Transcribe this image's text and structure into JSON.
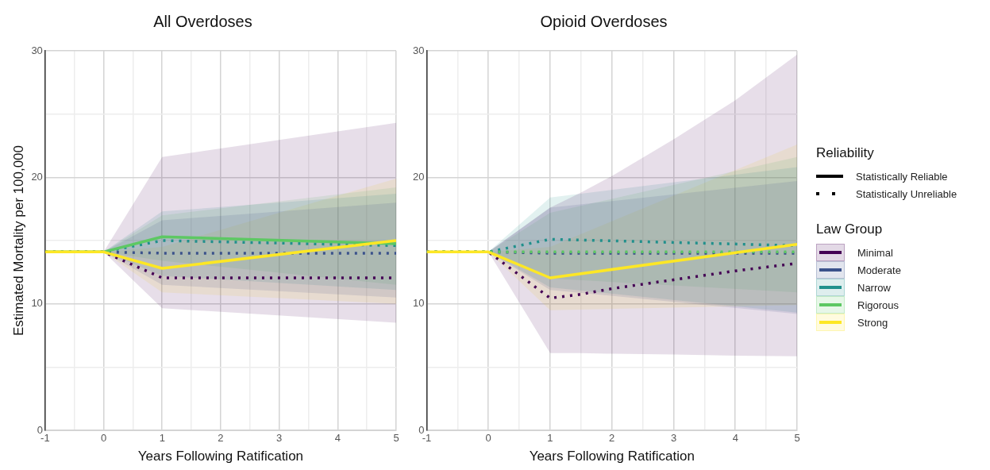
{
  "chart_data": [
    {
      "type": "line",
      "title": "All Overdoses",
      "xlabel": "Years Following Ratification",
      "ylabel": "Estimated Mortality per 100,000",
      "xlim": [
        -1,
        5
      ],
      "ylim": [
        0,
        30
      ],
      "xticks": [
        -1,
        {
          "value": -0.5,
          "label": null
        },
        0,
        {
          "value": 0.5,
          "label": null
        },
        1,
        {
          "value": 1.5,
          "label": null
        },
        2,
        {
          "value": 2.5,
          "label": null
        },
        3,
        {
          "value": 3.5,
          "label": null
        },
        4,
        {
          "value": 4.5,
          "label": null
        },
        5
      ],
      "yticks": [
        0,
        {
          "value": 5,
          "label": null
        },
        10,
        {
          "value": 15,
          "label": null
        },
        20,
        {
          "value": 25,
          "label": null
        },
        30
      ],
      "grid": true,
      "legend": false,
      "series": [
        {
          "color": "#440154",
          "line_style": "dotted",
          "x": [
            -1,
            0,
            1,
            5
          ],
          "values": [
            14.1,
            14.1,
            12.05,
            12.05
          ],
          "lower": [
            14.1,
            14.1,
            9.65,
            8.5
          ],
          "upper": [
            14.1,
            14.1,
            21.6,
            24.3
          ]
        },
        {
          "color": "#3b528b",
          "line_style": "dotted",
          "x": [
            -1,
            0,
            1,
            5
          ],
          "values": [
            14.1,
            14.1,
            14.0,
            14.0
          ],
          "lower": [
            14.1,
            14.1,
            11.5,
            10.5
          ],
          "upper": [
            14.1,
            14.1,
            16.6,
            18.0
          ]
        },
        {
          "color": "#21908c",
          "line_style": "dotted",
          "x": [
            -1,
            0,
            1,
            5
          ],
          "values": [
            14.1,
            14.1,
            15.0,
            14.6
          ],
          "lower": [
            14.1,
            14.1,
            12.2,
            11.1
          ],
          "upper": [
            14.1,
            14.1,
            17.3,
            18.7
          ]
        },
        {
          "color": "#5dc863",
          "line_style": "solid",
          "x": [
            -1,
            0,
            1,
            5
          ],
          "values": [
            14.1,
            14.1,
            15.3,
            14.75
          ],
          "lower": [
            14.1,
            14.1,
            13.4,
            11.5
          ],
          "upper": [
            14.1,
            14.1,
            17.0,
            19.2
          ]
        },
        {
          "color": "#fde725",
          "line_style": "solid",
          "x": [
            -1,
            0,
            1,
            5
          ],
          "values": [
            14.1,
            14.1,
            12.8,
            15.0
          ],
          "lower": [
            14.1,
            14.1,
            10.9,
            10.0
          ],
          "upper": [
            14.1,
            14.1,
            14.5,
            19.9
          ]
        }
      ]
    },
    {
      "type": "line",
      "title": "Opioid Overdoses",
      "xlabel": "Years Following Ratification",
      "xlim": [
        -1,
        5
      ],
      "ylim": [
        0,
        30
      ],
      "xticks": [
        -1,
        {
          "value": -0.5,
          "label": null
        },
        0,
        {
          "value": 0.5,
          "label": null
        },
        1,
        {
          "value": 1.5,
          "label": null
        },
        2,
        {
          "value": 2.5,
          "label": null
        },
        3,
        {
          "value": 3.5,
          "label": null
        },
        4,
        {
          "value": 4.5,
          "label": null
        },
        5
      ],
      "yticks": [
        0,
        {
          "value": 5,
          "label": null
        },
        10,
        {
          "value": 15,
          "label": null
        },
        20,
        {
          "value": 25,
          "label": null
        },
        30
      ],
      "grid": true,
      "legend": "right",
      "legend_title": "Law Group",
      "annotations": [
        "Reliability",
        "Statistically Reliable",
        "Statistically Unreliable"
      ],
      "series": [
        {
          "name": "Minimal",
          "color": "#440154",
          "line_style": "dotted",
          "x": [
            -1,
            0,
            1,
            1.5,
            2,
            3,
            4,
            5
          ],
          "values": [
            14.1,
            14.1,
            10.45,
            10.75,
            11.2,
            11.9,
            12.6,
            13.2
          ],
          "lower": [
            14.1,
            14.1,
            6.1,
            6.1,
            6.05,
            6.0,
            5.9,
            5.85
          ],
          "upper": [
            14.1,
            14.1,
            17.6,
            18.8,
            20.1,
            23.0,
            26.1,
            29.7
          ]
        },
        {
          "name": "Moderate",
          "color": "#3b528b",
          "line_style": "dotted",
          "x": [
            -1,
            0,
            1,
            5
          ],
          "values": [
            14.1,
            14.1,
            14.0,
            14.0
          ],
          "lower": [
            14.1,
            14.1,
            11.1,
            9.2
          ],
          "upper": [
            14.1,
            14.1,
            17.6,
            19.7
          ]
        },
        {
          "name": "Narrow",
          "color": "#21908c",
          "line_style": "dotted",
          "x": [
            -1,
            0,
            1,
            5
          ],
          "values": [
            14.1,
            14.1,
            15.1,
            14.6
          ],
          "lower": [
            14.1,
            14.1,
            11.3,
            9.3
          ],
          "upper": [
            14.1,
            14.1,
            18.4,
            20.8
          ]
        },
        {
          "name": "Rigorous",
          "color": "#5dc863",
          "line_style": "dotted",
          "x": [
            -1,
            0,
            1,
            5
          ],
          "values": [
            14.1,
            14.1,
            14.1,
            14.1
          ],
          "lower": [
            14.1,
            14.1,
            12.0,
            10.9
          ],
          "upper": [
            14.1,
            14.1,
            17.2,
            21.6
          ]
        },
        {
          "name": "Strong",
          "color": "#fde725",
          "line_style": "solid",
          "x": [
            -1,
            0,
            1,
            5
          ],
          "values": [
            14.1,
            14.1,
            12.05,
            14.7
          ],
          "lower": [
            14.1,
            14.1,
            9.5,
            9.9
          ],
          "upper": [
            14.1,
            14.1,
            14.5,
            22.6
          ]
        }
      ]
    }
  ]
}
